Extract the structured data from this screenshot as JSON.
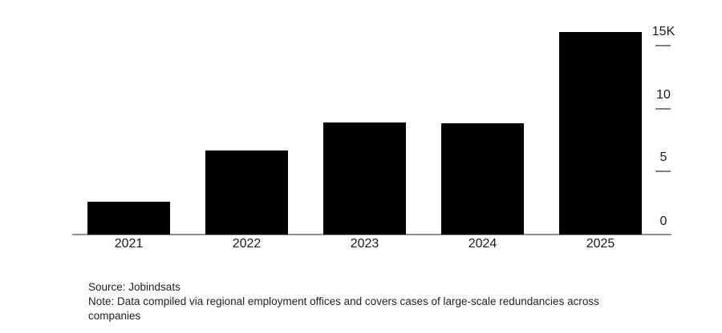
{
  "chart_data": {
    "type": "bar",
    "categories": [
      "2021",
      "2022",
      "2023",
      "2024",
      "2025"
    ],
    "values": [
      2600,
      6700,
      8900,
      8850,
      16100
    ],
    "y_ticks": [
      {
        "value": 15000,
        "label": "15K"
      },
      {
        "value": 10000,
        "label": "10"
      },
      {
        "value": 5000,
        "label": "5"
      },
      {
        "value": 0,
        "label": "0"
      }
    ],
    "ylim": [
      0,
      16500
    ],
    "grid": false,
    "legend_position": "none",
    "y_axis_side": "right",
    "colors": {
      "bar": "#000000",
      "axis_line": "#8f8f8f",
      "tick": "#808080",
      "axis_label": "#1a1a1a"
    }
  },
  "footer": {
    "source": "Source: Jobindsats",
    "note": "Note: Data compiled via regional employment offices and covers cases of large-scale redundancies across companies",
    "text_color": "#222222"
  }
}
